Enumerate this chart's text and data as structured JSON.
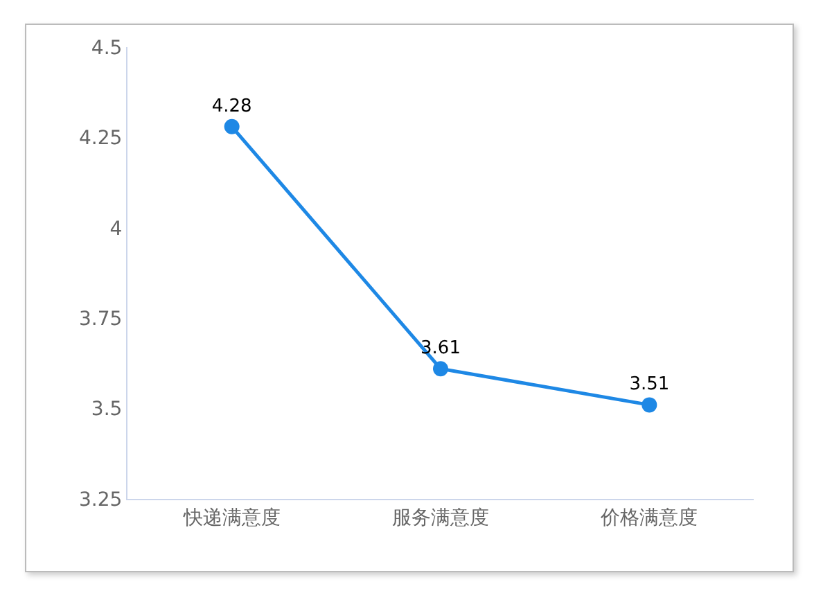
{
  "chart_data": {
    "type": "line",
    "categories": [
      "快递满意度",
      "服务满意度",
      "价格满意度"
    ],
    "series": [
      {
        "color": "#1e88e5",
        "values": [
          4.28,
          3.61,
          3.51
        ]
      }
    ],
    "ylim": [
      3.25,
      4.5
    ],
    "yticks": [
      3.25,
      3.5,
      3.75,
      4,
      4.25,
      4.5
    ],
    "marker": "circle",
    "line_style": "solid",
    "data_labels": true
  }
}
